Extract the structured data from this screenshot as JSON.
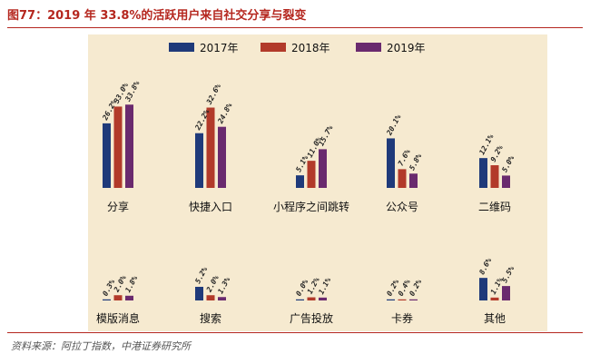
{
  "title": "图77：2019 年 33.8%的活跃用户来自社交分享与裂变",
  "source": "资料来源：阿拉丁指数，中港证券研究所",
  "chart_data": {
    "type": "bar",
    "series": [
      {
        "name": "2017年",
        "color": "#1f3a7a"
      },
      {
        "name": "2018年",
        "color": "#b23a2a"
      },
      {
        "name": "2019年",
        "color": "#6a2a6e"
      }
    ],
    "rows": [
      {
        "ylim": [
          0,
          35
        ],
        "groups": [
          {
            "category": "分享",
            "values": [
              26.2,
              33.0,
              33.8
            ],
            "labels": [
              "26.2%",
              "33.0%",
              "33.8%"
            ]
          },
          {
            "category": "快捷入口",
            "values": [
              22.2,
              32.6,
              24.8
            ],
            "labels": [
              "22.2%",
              "32.6%",
              "24.8%"
            ]
          },
          {
            "category": "小程序之间跳转",
            "values": [
              5.1,
              11.0,
              15.7
            ],
            "labels": [
              "5.1%",
              "11.0%",
              "15.7%"
            ]
          },
          {
            "category": "公众号",
            "values": [
              20.1,
              7.6,
              5.8
            ],
            "labels": [
              "20.1%",
              "7.6%",
              "5.8%"
            ]
          },
          {
            "category": "二维码",
            "values": [
              12.1,
              9.2,
              5.0
            ],
            "labels": [
              "12.1%",
              "9.2%",
              "5.0%"
            ]
          }
        ]
      },
      {
        "ylim": [
          0,
          9
        ],
        "groups": [
          {
            "category": "模版消息",
            "values": [
              0.3,
              2.0,
              1.8
            ],
            "labels": [
              "0.3%",
              "2.0%",
              "1.8%"
            ]
          },
          {
            "category": "搜索",
            "values": [
              5.2,
              2.0,
              1.3
            ],
            "labels": [
              "5.2%",
              "2.0%",
              "1.3%"
            ]
          },
          {
            "category": "广告投放",
            "values": [
              0.0,
              1.2,
              1.1
            ],
            "labels": [
              "0.0%",
              "1.2%",
              "1.1%"
            ]
          },
          {
            "category": "卡券",
            "values": [
              0.2,
              0.4,
              0.2
            ],
            "labels": [
              "0.2%",
              "0.4%",
              "0.2%"
            ]
          },
          {
            "category": "其他",
            "values": [
              8.6,
              1.1,
              5.5
            ],
            "labels": [
              "8.6%",
              "1.1%",
              "5.5%"
            ]
          }
        ]
      }
    ],
    "legend_position": "top",
    "grid": false
  }
}
